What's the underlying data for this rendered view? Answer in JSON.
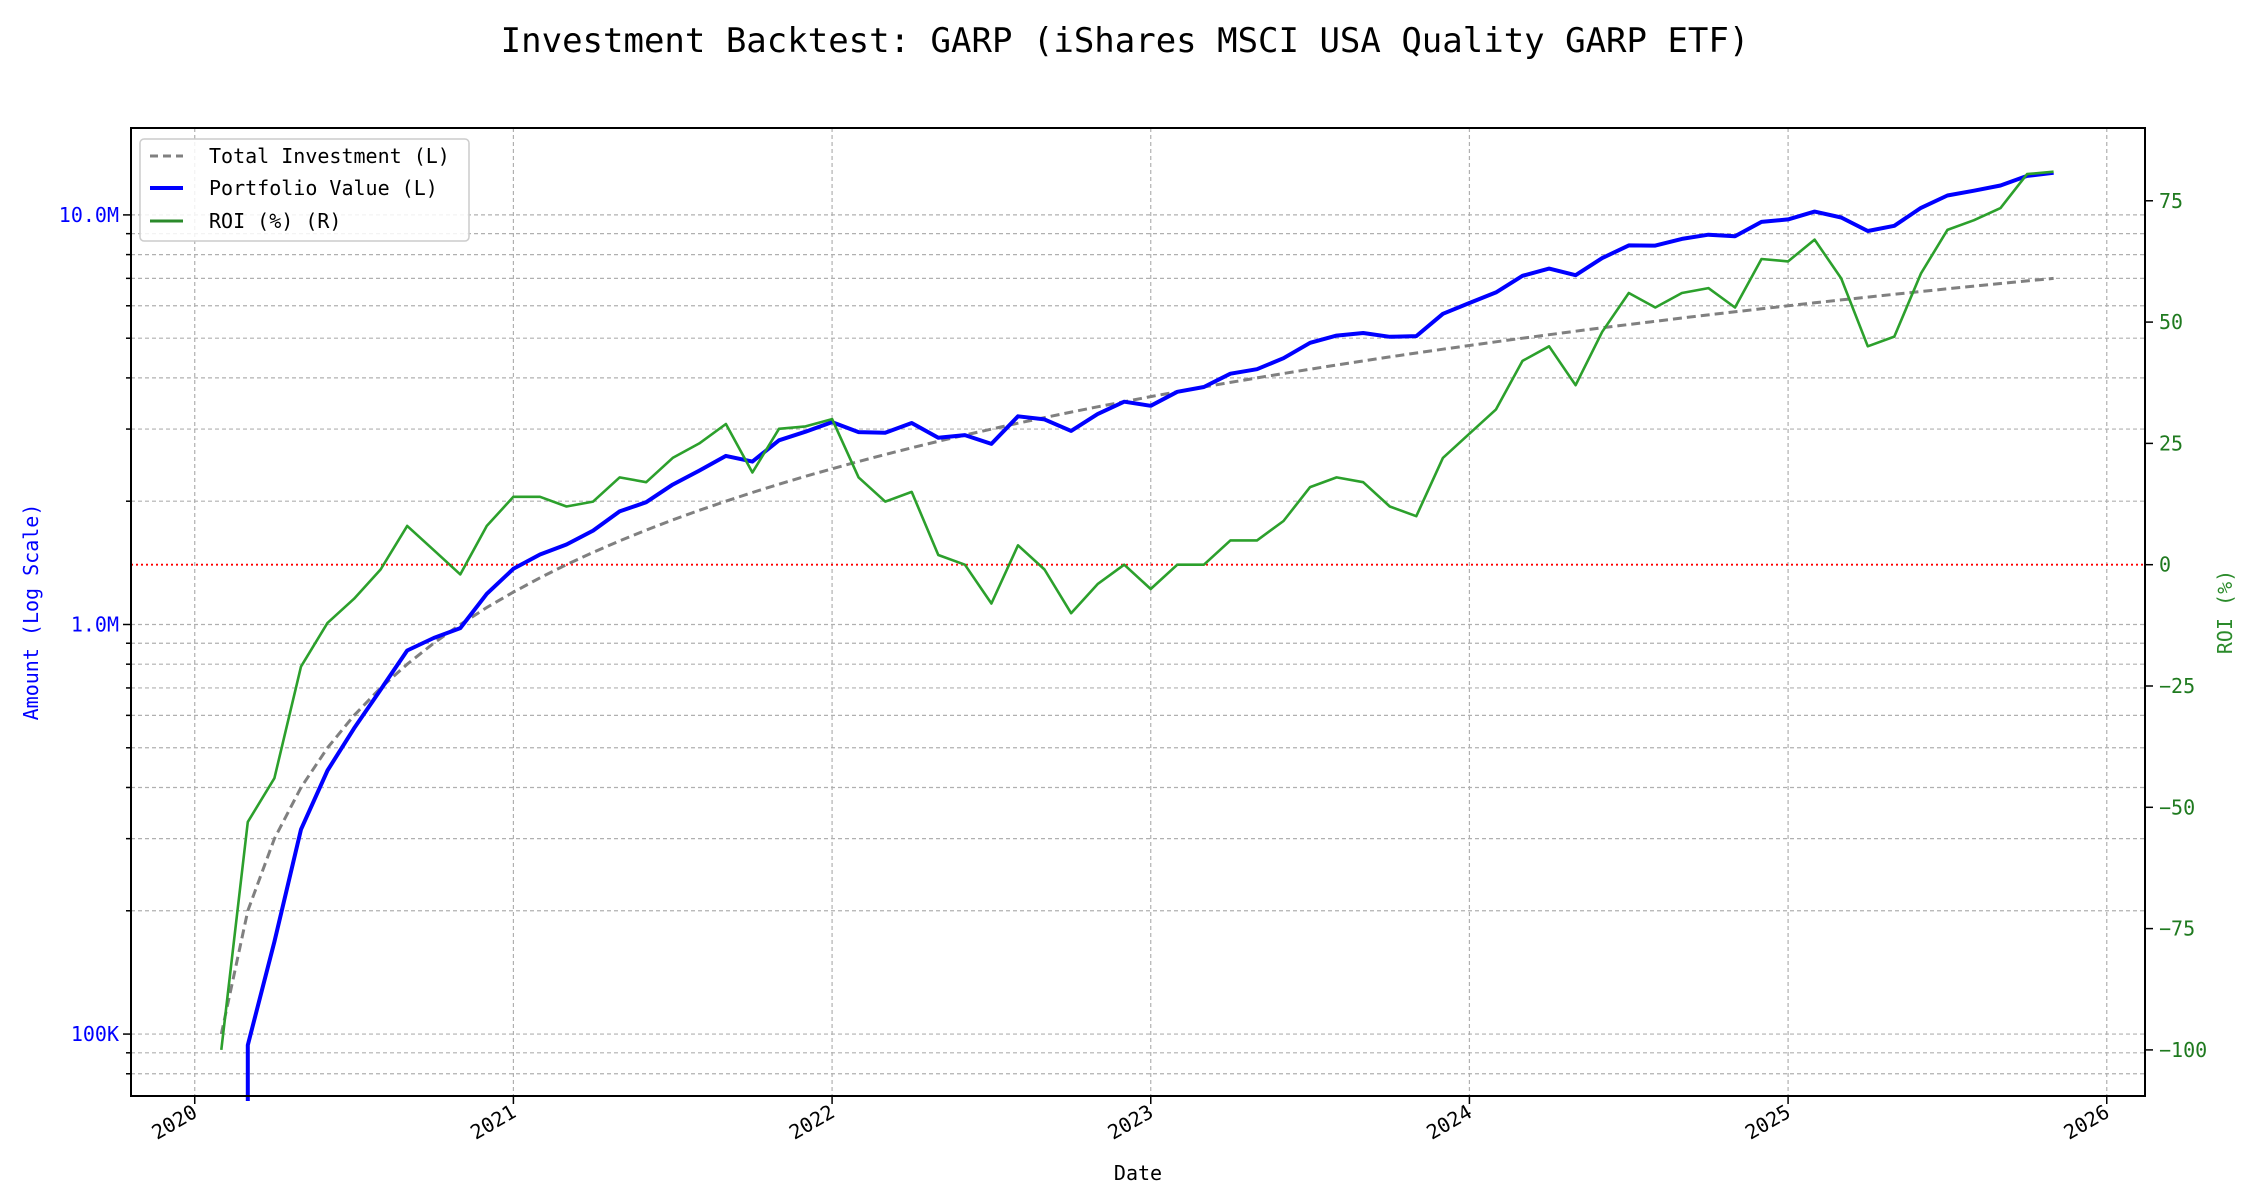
{
  "chart_data": {
    "type": "line",
    "title": "Investment Backtest: GARP (iShares MSCI USA Quality GARP ETF)",
    "xlabel": "Date",
    "ylabel_left": "Amount (Log Scale)",
    "ylabel_right": "ROI (%)",
    "x_ticks": [
      "2020",
      "2021",
      "2022",
      "2023",
      "2024",
      "2025",
      "2026"
    ],
    "x_range": [
      2019.8,
      2026.12
    ],
    "y_left_scale": "log",
    "y_left_range": [
      70600,
      16300000
    ],
    "y_left_ticks": [
      {
        "value": 100000,
        "label": "100K"
      },
      {
        "value": 1000000,
        "label": "1.0M"
      },
      {
        "value": 10000000,
        "label": "10.0M"
      }
    ],
    "y_right_range": [
      -109.5,
      90
    ],
    "y_right_ticks": [
      {
        "value": -100,
        "label": "−100"
      },
      {
        "value": -75,
        "label": "−75"
      },
      {
        "value": -50,
        "label": "−50"
      },
      {
        "value": -25,
        "label": "−25"
      },
      {
        "value": 0,
        "label": "0"
      },
      {
        "value": 25,
        "label": "25"
      },
      {
        "value": 50,
        "label": "50"
      },
      {
        "value": 75,
        "label": "75"
      }
    ],
    "grid": true,
    "reference_line": {
      "axis": "right",
      "value": 0,
      "color": "#ff0000",
      "style": "dotted"
    },
    "legend_position": "top-left",
    "start_month": "2020-02",
    "monthly_investment": 100000,
    "series": [
      {
        "name": "Total Investment (L)",
        "color": "#808080",
        "style": "dashed",
        "axis": "left",
        "derived": "cumulative monthly investment"
      },
      {
        "name": "Portfolio Value (L)",
        "color": "#0000ff",
        "style": "solid",
        "axis": "left",
        "derived": "investment * (1 + ROI/100)"
      },
      {
        "name": "ROI (%) (R)",
        "color": "#2ca02c",
        "style": "solid",
        "axis": "right",
        "values": [
          -100,
          -53,
          -44,
          -21,
          -12,
          -7,
          -1,
          8,
          3,
          -2,
          8,
          14,
          14,
          12,
          13,
          18,
          17,
          22,
          25,
          29,
          19,
          28,
          28.5,
          30,
          18,
          13,
          15,
          2,
          0,
          -8,
          4,
          -1,
          -10,
          -4,
          0,
          -5,
          0,
          0,
          5,
          5,
          9,
          16,
          18,
          17,
          12,
          10,
          22,
          27,
          32,
          42,
          45,
          37,
          48,
          56,
          53,
          56,
          57,
          53,
          63,
          62.5,
          67,
          59,
          45,
          47,
          60,
          69,
          71,
          73.5,
          80.5,
          81
        ]
      }
    ]
  }
}
